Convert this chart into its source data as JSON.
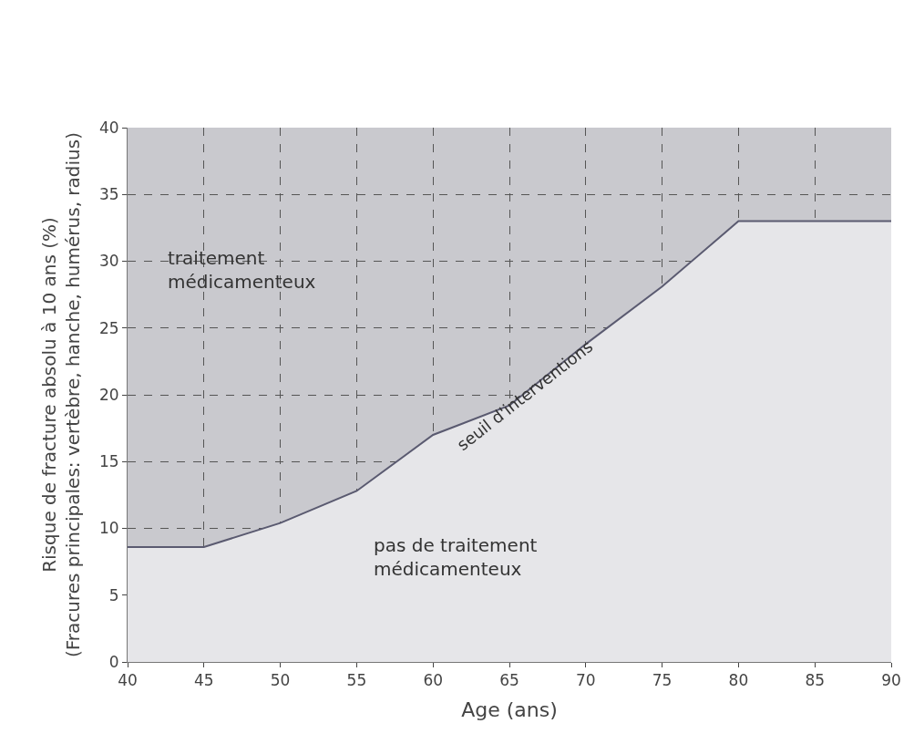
{
  "chart_data": {
    "type": "area",
    "xlabel": "Age (ans)",
    "ylabel": "Risque de fracture absolu à 10 ans (%)\n(Fracures principales: vertèbre, hanche, humérus, radius)",
    "x": [
      40,
      45,
      50,
      55,
      57.5,
      60,
      65,
      70,
      75,
      80,
      90
    ],
    "series": [
      {
        "color": "#5a5a70",
        "values": [
          8.6,
          8.6,
          10.4,
          12.8,
          14.9,
          17.0,
          19.2,
          23.8,
          28.1,
          33,
          33
        ]
      }
    ],
    "bands": [
      {
        "axis": "y",
        "from": 0,
        "to": 40,
        "color": "#c9c9ce"
      }
    ],
    "xlim": [
      40,
      90
    ],
    "xticks": [
      40,
      45,
      50,
      55,
      60,
      65,
      70,
      75,
      80,
      85,
      90
    ],
    "ylim": [
      0,
      40
    ],
    "yticks": [
      0,
      5,
      10,
      15,
      20,
      25,
      30,
      35,
      40
    ],
    "grid": true,
    "line_style": "dashed",
    "annotations": [
      "traitement\nmédicamenteux",
      "pas de traitement\nmédicamenteux",
      {
        "text": "seuil d'interventions",
        "x": 66,
        "y": 20
      }
    ]
  }
}
